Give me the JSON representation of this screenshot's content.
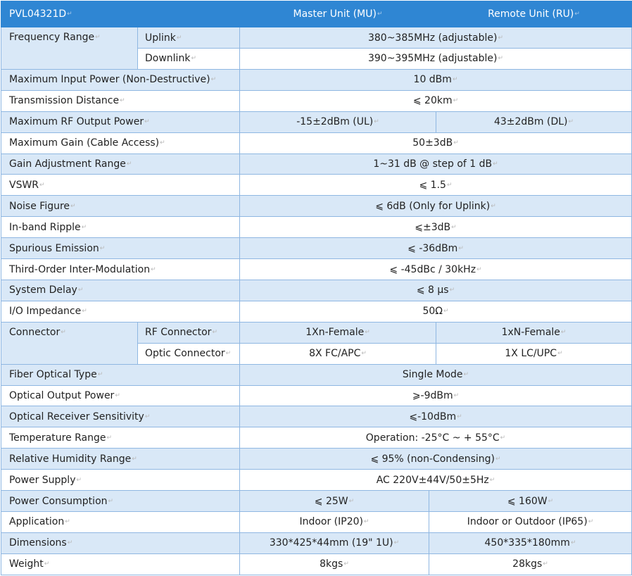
{
  "header": {
    "model": "PVL04321D",
    "master": "Master Unit (MU)",
    "remote": "Remote Unit (RU)"
  },
  "rows": {
    "freq_label": "Frequency Range",
    "uplink_label": "Uplink",
    "uplink_value": "380~385MHz (adjustable)",
    "downlink_label": "Downlink",
    "downlink_value": "390~395MHz (adjustable)",
    "max_input_label": "Maximum Input Power (Non-Destructive)",
    "max_input_value": "10 dBm",
    "trans_dist_label": "Transmission Distance",
    "trans_dist_value": "⩽ 20km",
    "rf_out_label": "Maximum RF Output Power",
    "rf_out_mu": "-15±2dBm (UL)",
    "rf_out_ru": "43±2dBm (DL)",
    "max_gain_label": "Maximum Gain (Cable Access)",
    "max_gain_value": "50±3dB",
    "gain_adj_label": "Gain Adjustment Range",
    "gain_adj_value": "1~31 dB @ step of 1 dB",
    "vswr_label": "VSWR",
    "vswr_value": "⩽ 1.5",
    "noise_label": "Noise Figure",
    "noise_value": "⩽ 6dB (Only for Uplink)",
    "ripple_label": "In-band Ripple",
    "ripple_value": "⩽±3dB",
    "spurious_label": "Spurious Emission",
    "spurious_value": "⩽ -36dBm",
    "third_order_label": "Third-Order Inter-Modulation",
    "third_order_value": "⩽ -45dBc / 30kHz",
    "delay_label": "System Delay",
    "delay_value": "⩽ 8 μs",
    "impedance_label": "I/O Impedance",
    "impedance_value": "50Ω",
    "connector_label": "Connector",
    "rf_conn_label": "RF Connector",
    "rf_conn_mu": "1Xn-Female",
    "rf_conn_ru": "1xN-Female",
    "optic_conn_label": "Optic Connector",
    "optic_conn_mu": "8X FC/APC",
    "optic_conn_ru": "1X LC/UPC",
    "fiber_label": "Fiber Optical Type",
    "fiber_value": "Single Mode",
    "opt_out_label": "Optical Output Power",
    "opt_out_value": "⩾-9dBm",
    "opt_rx_label": "Optical Receiver Sensitivity",
    "opt_rx_value": "⩽-10dBm",
    "temp_label": "Temperature Range",
    "temp_value": "Operation: -25°C ~ + 55°C",
    "humidity_label": "Relative Humidity Range",
    "humidity_value": "⩽ 95% (non-Condensing)",
    "power_supply_label": "Power Supply",
    "power_supply_value": "AC 220V±44V/50±5Hz",
    "power_cons_label": "Power Consumption",
    "power_cons_mu": "⩽ 25W",
    "power_cons_ru": "⩽ 160W",
    "application_label": "Application",
    "application_mu": "Indoor (IP20)",
    "application_ru": "Indoor or Outdoor (IP65)",
    "dimensions_label": "Dimensions",
    "dimensions_mu": "330*425*44mm (19\" 1U)",
    "dimensions_ru": "450*335*180mm",
    "weight_label": "Weight",
    "weight_mu": "8kgs",
    "weight_ru": "28kgs"
  }
}
